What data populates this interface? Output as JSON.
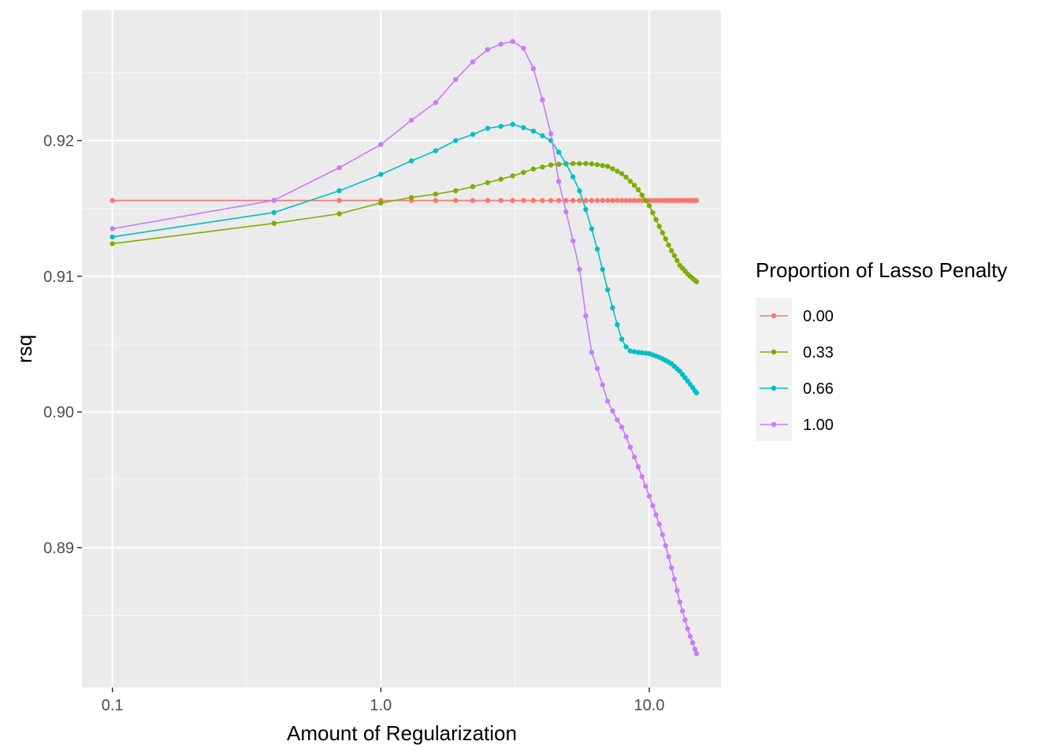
{
  "chart_data": {
    "type": "line",
    "xlabel": "Amount of Regularization",
    "ylabel": "rsq",
    "x_scale": "log10",
    "xlim": [
      0.077,
      18.5
    ],
    "ylim": [
      0.8797,
      0.9296
    ],
    "x_ticks": [
      {
        "value": 0.1,
        "label": "0.1"
      },
      {
        "value": 1.0,
        "label": "1.0"
      },
      {
        "value": 10.0,
        "label": "10.0"
      }
    ],
    "y_ticks": [
      {
        "value": 0.89,
        "label": "0.89"
      },
      {
        "value": 0.9,
        "label": "0.90"
      },
      {
        "value": 0.91,
        "label": "0.91"
      },
      {
        "value": 0.92,
        "label": "0.92"
      }
    ],
    "grid": true,
    "legend": {
      "title": "Proportion of Lasso Penalty",
      "position": "right"
    },
    "series": [
      {
        "name": "0.00",
        "color": "#F8766D",
        "knots": [
          [
            0.1,
            0.91558
          ],
          [
            15.0,
            0.91558
          ]
        ]
      },
      {
        "name": "0.33",
        "color": "#7CAE00",
        "knots": [
          [
            0.1,
            0.9124
          ],
          [
            0.4,
            0.9139
          ],
          [
            0.7,
            0.9146
          ],
          [
            1.0,
            0.9154
          ],
          [
            1.3,
            0.9158
          ],
          [
            1.9,
            0.9163
          ],
          [
            2.5,
            0.9169
          ],
          [
            3.1,
            0.9174
          ],
          [
            3.7,
            0.9179
          ],
          [
            4.3,
            0.9182
          ],
          [
            5.0,
            0.9183
          ],
          [
            6.0,
            0.9183
          ],
          [
            7.0,
            0.9181
          ],
          [
            8.0,
            0.9175
          ],
          [
            9.0,
            0.9165
          ],
          [
            10.0,
            0.9152
          ],
          [
            11.0,
            0.9135
          ],
          [
            12.0,
            0.912
          ],
          [
            13.0,
            0.9108
          ],
          [
            14.0,
            0.9101
          ],
          [
            15.0,
            0.9096
          ]
        ]
      },
      {
        "name": "0.66",
        "color": "#00BFC4",
        "knots": [
          [
            0.1,
            0.9129
          ],
          [
            0.4,
            0.9147
          ],
          [
            0.7,
            0.9163
          ],
          [
            1.0,
            0.9175
          ],
          [
            1.3,
            0.9185
          ],
          [
            1.9,
            0.92
          ],
          [
            2.5,
            0.9209
          ],
          [
            3.1,
            0.9212
          ],
          [
            3.7,
            0.9207
          ],
          [
            4.3,
            0.92
          ],
          [
            5.0,
            0.918
          ],
          [
            5.5,
            0.9163
          ],
          [
            6.0,
            0.914
          ],
          [
            6.5,
            0.9115
          ],
          [
            7.0,
            0.909
          ],
          [
            7.5,
            0.9068
          ],
          [
            8.0,
            0.905
          ],
          [
            8.5,
            0.9045
          ],
          [
            9.0,
            0.9044
          ],
          [
            10.0,
            0.9043
          ],
          [
            11.0,
            0.904
          ],
          [
            12.0,
            0.9036
          ],
          [
            13.0,
            0.903
          ],
          [
            14.0,
            0.9022
          ],
          [
            15.0,
            0.9014
          ]
        ]
      },
      {
        "name": "1.00",
        "color": "#C77CFF",
        "knots": [
          [
            0.1,
            0.9135
          ],
          [
            0.4,
            0.9156
          ],
          [
            0.7,
            0.918
          ],
          [
            1.0,
            0.9197
          ],
          [
            1.3,
            0.9215
          ],
          [
            1.6,
            0.9228
          ],
          [
            1.9,
            0.9245
          ],
          [
            2.2,
            0.9258
          ],
          [
            2.5,
            0.9267
          ],
          [
            2.8,
            0.9271
          ],
          [
            3.1,
            0.9273
          ],
          [
            3.4,
            0.9268
          ],
          [
            3.7,
            0.9253
          ],
          [
            4.0,
            0.923
          ],
          [
            4.3,
            0.9205
          ],
          [
            4.6,
            0.917
          ],
          [
            5.0,
            0.914
          ],
          [
            5.5,
            0.9105
          ],
          [
            6.0,
            0.9048
          ],
          [
            6.5,
            0.9028
          ],
          [
            7.0,
            0.9008
          ],
          [
            7.5,
            0.8996
          ],
          [
            8.0,
            0.8987
          ],
          [
            8.5,
            0.8974
          ],
          [
            9.0,
            0.8962
          ],
          [
            9.5,
            0.895
          ],
          [
            10.0,
            0.8938
          ],
          [
            11.0,
            0.8915
          ],
          [
            12.0,
            0.8888
          ],
          [
            13.0,
            0.886
          ],
          [
            14.0,
            0.8838
          ],
          [
            15.0,
            0.8822
          ]
        ]
      }
    ]
  }
}
